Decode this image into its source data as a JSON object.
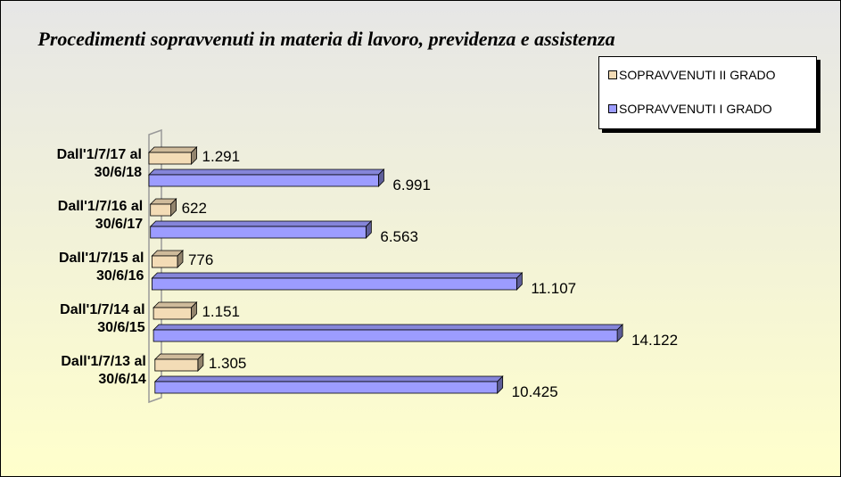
{
  "chart_data": {
    "type": "bar3d-horizontal",
    "title": "Procedimenti sopravvenuti in materia di lavoro, previdenza e assistenza",
    "categories": [
      "Dall'1/7/17 al 30/6/18",
      "Dall'1/7/16 al 30/6/17",
      "Dall'1/7/15 al 30/6/16",
      "Dall'1/7/14 al 30/6/15",
      "Dall'1/7/13 al 30/6/14"
    ],
    "series": [
      {
        "name": "SOPRAVVENUTI II GRADO",
        "color": "#f3dcb6",
        "values": [
          1291,
          622,
          776,
          1151,
          1305
        ],
        "value_labels": [
          "1.291",
          "622",
          "776",
          "1.151",
          "1.305"
        ]
      },
      {
        "name": "SOPRAVVENUTI I GRADO",
        "color": "#9c9cff",
        "values": [
          6991,
          6563,
          11107,
          14122,
          10425
        ],
        "value_labels": [
          "6.991",
          "6.563",
          "11.107",
          "14.122",
          "10.425"
        ]
      }
    ],
    "legend": "top-right"
  }
}
